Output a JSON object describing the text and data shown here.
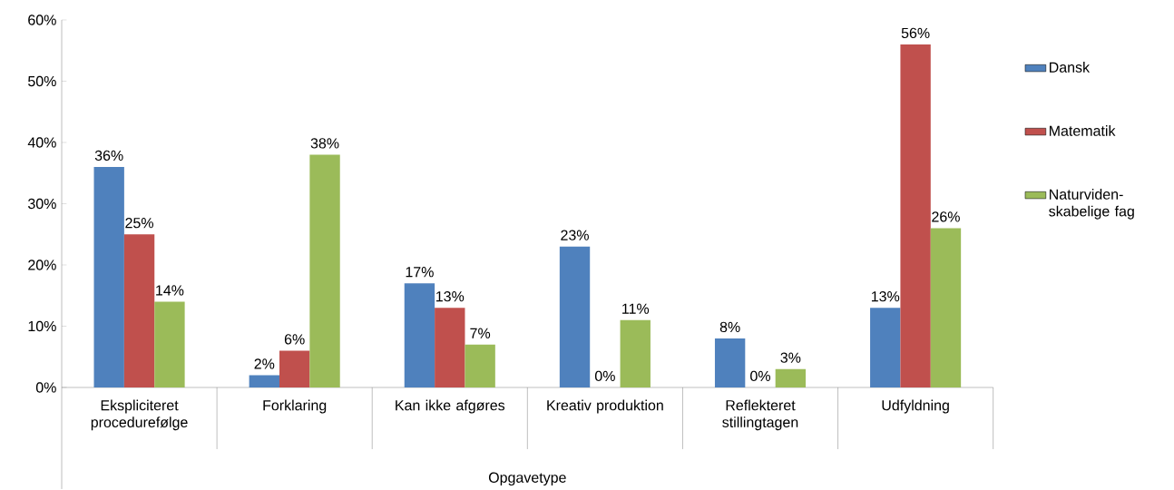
{
  "chart_data": {
    "type": "bar",
    "xlabel": "Opgavetype",
    "categories": [
      "Ekspliciteret procedurefølge",
      "Forklaring",
      "Kan ikke afgøres",
      "Kreativ produktion",
      "Reflekteret stillingtagen",
      "Udfyldning"
    ],
    "series": [
      {
        "name": "Dansk",
        "color": "#4f81bd",
        "values": [
          36,
          2,
          17,
          23,
          8,
          13
        ],
        "value_labels": [
          "36%",
          "2%",
          "17%",
          "23%",
          "8%",
          "13%"
        ]
      },
      {
        "name": "Matematik",
        "color": "#c0504d",
        "values": [
          25,
          6,
          13,
          0,
          0,
          56
        ],
        "value_labels": [
          "25%",
          "6%",
          "13%",
          "0%",
          "0%",
          "56%"
        ]
      },
      {
        "name": "Naturviden-skabelige fag",
        "color": "#9bbb59",
        "values": [
          14,
          38,
          7,
          11,
          3,
          26
        ],
        "value_labels": [
          "14%",
          "38%",
          "7%",
          "11%",
          "3%",
          "26%"
        ]
      }
    ],
    "ylim": [
      0,
      60
    ],
    "yticks": [
      {
        "value": 0,
        "label": "0%"
      },
      {
        "value": 10,
        "label": "10%"
      },
      {
        "value": 20,
        "label": "20%"
      },
      {
        "value": 30,
        "label": "30%"
      },
      {
        "value": 40,
        "label": "40%"
      },
      {
        "value": 50,
        "label": "50%"
      },
      {
        "value": 60,
        "label": "60%"
      }
    ],
    "legend": "right"
  }
}
